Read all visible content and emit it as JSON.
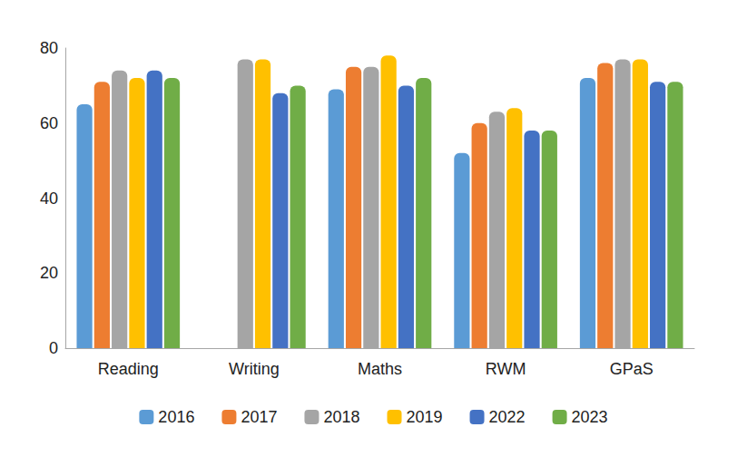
{
  "chart_data": {
    "type": "bar",
    "categories": [
      "Reading",
      "Writing",
      "Maths",
      "RWM",
      "GPaS"
    ],
    "series": [
      {
        "name": "2016",
        "color": "#5b9bd5",
        "values": [
          65,
          null,
          69,
          52,
          72
        ]
      },
      {
        "name": "2017",
        "color": "#ed7d31",
        "values": [
          71,
          null,
          75,
          60,
          76
        ]
      },
      {
        "name": "2018",
        "color": "#a5a5a5",
        "values": [
          74,
          77,
          75,
          63,
          77
        ]
      },
      {
        "name": "2019",
        "color": "#ffc000",
        "values": [
          72,
          77,
          78,
          64,
          77
        ]
      },
      {
        "name": "2022",
        "color": "#4472c4",
        "values": [
          74,
          68,
          70,
          58,
          71
        ]
      },
      {
        "name": "2023",
        "color": "#70ad47",
        "values": [
          72,
          70,
          72,
          58,
          71
        ]
      }
    ],
    "ylim": [
      0,
      80
    ],
    "yticks": [
      0,
      20,
      40,
      60,
      80
    ],
    "grid": false,
    "legend": "bottom"
  }
}
